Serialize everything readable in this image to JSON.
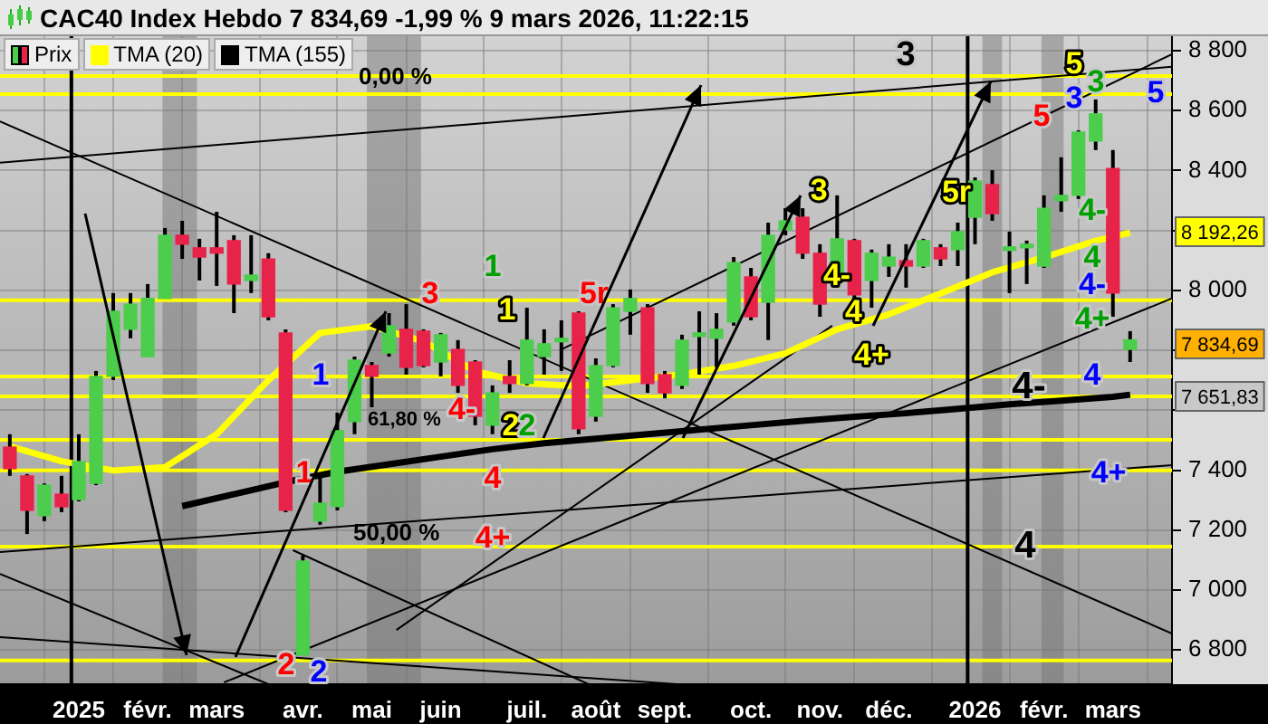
{
  "chart_data": {
    "type": "candlestick",
    "title": "CAC40 Index Hebdo 7 834,69 -1,99 % 9 mars 2026, 11:22:15",
    "xlim": [
      "2024-12-05",
      "2026-03-26"
    ],
    "xticks": [
      {
        "value": "2025-01-06",
        "label": "2025"
      },
      {
        "value": "2025-02-03",
        "label": "févr."
      },
      {
        "value": "2025-03-03",
        "label": "mars"
      },
      {
        "value": "2025-04-07",
        "label": "avr."
      },
      {
        "value": "2025-05-05",
        "label": "mai"
      },
      {
        "value": "2025-06-02",
        "label": "juin"
      },
      {
        "value": "2025-07-07",
        "label": "juil."
      },
      {
        "value": "2025-08-04",
        "label": "août"
      },
      {
        "value": "2025-09-01",
        "label": "sept."
      },
      {
        "value": "2025-10-06",
        "label": "oct."
      },
      {
        "value": "2025-11-03",
        "label": "nov."
      },
      {
        "value": "2025-12-01",
        "label": "déc."
      },
      {
        "value": "2026-01-05",
        "label": "2026"
      },
      {
        "value": "2026-02-02",
        "label": "févr."
      },
      {
        "value": "2026-03-02",
        "label": "mars"
      }
    ],
    "ylim": [
      6686,
      8848
    ],
    "yticks": [
      {
        "value": 6800,
        "label": "6 800"
      },
      {
        "value": 7000,
        "label": "7 000"
      },
      {
        "value": 7200,
        "label": "7 200"
      },
      {
        "value": 7400,
        "label": "7 400"
      },
      {
        "value": 7600,
        "label": null
      },
      {
        "value": 7800,
        "label": null
      },
      {
        "value": 8000,
        "label": "8 000"
      },
      {
        "value": 8200,
        "label": null
      },
      {
        "value": 8400,
        "label": "8 400"
      },
      {
        "value": 8600,
        "label": "8 600"
      },
      {
        "value": 8800,
        "label": "8 800"
      }
    ],
    "grid": true,
    "legend": "top left",
    "series": [
      {
        "name": "Prix",
        "x": [
          "2024-12-09",
          "2024-12-16",
          "2024-12-23",
          "2024-12-30",
          "2025-01-06",
          "2025-01-13",
          "2025-01-20",
          "2025-01-27",
          "2025-02-03",
          "2025-02-10",
          "2025-02-17",
          "2025-02-24",
          "2025-03-03",
          "2025-03-10",
          "2025-03-17",
          "2025-03-24",
          "2025-03-31",
          "2025-04-07",
          "2025-04-14",
          "2025-04-21",
          "2025-04-28",
          "2025-05-05",
          "2025-05-12",
          "2025-05-19",
          "2025-05-26",
          "2025-06-02",
          "2025-06-09",
          "2025-06-16",
          "2025-06-23",
          "2025-06-30",
          "2025-07-07",
          "2025-07-14",
          "2025-07-21",
          "2025-07-28",
          "2025-08-04",
          "2025-08-11",
          "2025-08-18",
          "2025-08-25",
          "2025-09-01",
          "2025-09-08",
          "2025-09-15",
          "2025-09-22",
          "2025-09-29",
          "2025-10-06",
          "2025-10-13",
          "2025-10-20",
          "2025-10-27",
          "2025-11-03",
          "2025-11-10",
          "2025-11-17",
          "2025-11-24",
          "2025-12-01",
          "2025-12-08",
          "2025-12-15",
          "2025-12-22",
          "2025-12-29",
          "2026-01-05",
          "2026-01-12",
          "2026-01-19",
          "2026-01-26",
          "2026-02-02",
          "2026-02-09",
          "2026-02-16",
          "2026-02-23",
          "2026-03-02",
          "2026-03-09"
        ],
        "ohlc": [
          [
            7477,
            7520,
            7381,
            7405
          ],
          [
            7381,
            7387,
            7187,
            7266
          ],
          [
            7248,
            7356,
            7230,
            7350
          ],
          [
            7320,
            7381,
            7260,
            7278
          ],
          [
            7302,
            7520,
            7296,
            7429
          ],
          [
            7356,
            7731,
            7350,
            7713
          ],
          [
            7713,
            7991,
            7701,
            7930
          ],
          [
            7870,
            7991,
            7840,
            7954
          ],
          [
            7779,
            8021,
            7779,
            7973
          ],
          [
            7973,
            8208,
            7973,
            8184
          ],
          [
            8184,
            8232,
            8105,
            8154
          ],
          [
            8142,
            8172,
            8033,
            8111
          ],
          [
            8142,
            8262,
            8015,
            8124
          ],
          [
            8166,
            8184,
            7924,
            8021
          ],
          [
            8033,
            8184,
            7991,
            8051
          ],
          [
            8105,
            8124,
            7900,
            7912
          ],
          [
            7858,
            7870,
            7260,
            7266
          ],
          [
            6783,
            7115,
            6783,
            7097
          ],
          [
            7230,
            7381,
            7218,
            7290
          ],
          [
            7278,
            7592,
            7266,
            7532
          ],
          [
            7562,
            7779,
            7520,
            7767
          ],
          [
            7749,
            7761,
            7610,
            7713
          ],
          [
            7791,
            7924,
            7779,
            7882
          ],
          [
            7870,
            7954,
            7719,
            7743
          ],
          [
            7864,
            7870,
            7743,
            7749
          ],
          [
            7761,
            7858,
            7713,
            7852
          ],
          [
            7803,
            7834,
            7658,
            7683
          ],
          [
            7761,
            7767,
            7550,
            7580
          ],
          [
            7550,
            7683,
            7520,
            7658
          ],
          [
            7713,
            7767,
            7658,
            7689
          ],
          [
            7689,
            7942,
            7683,
            7834
          ],
          [
            7779,
            7870,
            7719,
            7822
          ],
          [
            7828,
            7900,
            7731,
            7834
          ],
          [
            7924,
            7930,
            7520,
            7538
          ],
          [
            7580,
            7773,
            7562,
            7749
          ],
          [
            7749,
            7954,
            7743,
            7942
          ],
          [
            7930,
            8003,
            7852,
            7973
          ],
          [
            7942,
            7954,
            7658,
            7689
          ],
          [
            7719,
            7731,
            7640,
            7658
          ],
          [
            7683,
            7852,
            7671,
            7834
          ],
          [
            7846,
            7930,
            7719,
            7852
          ],
          [
            7840,
            7924,
            7743,
            7870
          ],
          [
            7894,
            8111,
            7882,
            8093
          ],
          [
            8045,
            8075,
            7900,
            7912
          ],
          [
            7960,
            8226,
            7834,
            8184
          ],
          [
            8202,
            8274,
            8184,
            8232
          ],
          [
            8244,
            8274,
            8105,
            8124
          ],
          [
            8124,
            8154,
            7912,
            7954
          ],
          [
            8033,
            8317,
            8021,
            8172
          ],
          [
            8166,
            8172,
            7960,
            7985
          ],
          [
            8033,
            8136,
            7942,
            8124
          ],
          [
            8081,
            8154,
            8045,
            8111
          ],
          [
            8099,
            8154,
            8009,
            8081
          ],
          [
            8081,
            8172,
            8075,
            8166
          ],
          [
            8142,
            8154,
            8081,
            8105
          ],
          [
            8136,
            8226,
            8081,
            8196
          ],
          [
            8244,
            8377,
            8154,
            8365
          ],
          [
            8353,
            8401,
            8232,
            8256
          ],
          [
            8133,
            8196,
            7991,
            8139
          ],
          [
            8142,
            8166,
            8021,
            8154
          ],
          [
            8081,
            8317,
            8075,
            8274
          ],
          [
            8299,
            8444,
            8262,
            8317
          ],
          [
            8317,
            8534,
            8305,
            8528
          ],
          [
            8498,
            8637,
            8468,
            8589
          ],
          [
            8407,
            8468,
            7912,
            7991
          ],
          [
            7803,
            7864,
            7761,
            7834.69
          ]
        ],
        "colors": [
          "#e8234a",
          "#e8234a",
          "#4ccd4c",
          "#e8234a",
          "#4ccd4c",
          "#4ccd4c",
          "#4ccd4c",
          "#4ccd4c",
          "#4ccd4c",
          "#4ccd4c",
          "#e8234a",
          "#e8234a",
          "#e8234a",
          "#e8234a",
          "#4ccd4c",
          "#e8234a",
          "#e8234a",
          "#4ccd4c",
          "#4ccd4c",
          "#4ccd4c",
          "#4ccd4c",
          "#e8234a",
          "#4ccd4c",
          "#e8234a",
          "#e8234a",
          "#4ccd4c",
          "#e8234a",
          "#e8234a",
          "#4ccd4c",
          "#e8234a",
          "#4ccd4c",
          "#4ccd4c",
          "#4ccd4c",
          "#e8234a",
          "#4ccd4c",
          "#4ccd4c",
          "#4ccd4c",
          "#e8234a",
          "#e8234a",
          "#4ccd4c",
          "#4ccd4c",
          "#4ccd4c",
          "#4ccd4c",
          "#e8234a",
          "#4ccd4c",
          "#4ccd4c",
          "#e8234a",
          "#e8234a",
          "#4ccd4c",
          "#e8234a",
          "#4ccd4c",
          "#4ccd4c",
          "#e8234a",
          "#4ccd4c",
          "#e8234a",
          "#4ccd4c",
          "#4ccd4c",
          "#e8234a",
          "#4ccd4c",
          "#4ccd4c",
          "#4ccd4c",
          "#4ccd4c",
          "#4ccd4c",
          "#4ccd4c",
          "#e8234a",
          "#4ccd4c"
        ]
      },
      {
        "name": "TMA (20)",
        "type": "line",
        "color": "#ffff00",
        "x": [
          "2024-12-09",
          "2024-12-30",
          "2025-01-20",
          "2025-02-10",
          "2025-03-03",
          "2025-03-24",
          "2025-04-14",
          "2025-05-05",
          "2025-05-26",
          "2025-06-16",
          "2025-07-07",
          "2025-07-28",
          "2025-08-18",
          "2025-09-08",
          "2025-09-29",
          "2025-10-20",
          "2025-11-10",
          "2025-12-01",
          "2025-12-22",
          "2026-01-12",
          "2026-02-02",
          "2026-02-23",
          "2026-03-09"
        ],
        "values": [
          7480,
          7430,
          7399,
          7410,
          7520,
          7700,
          7858,
          7880,
          7830,
          7730,
          7690,
          7680,
          7700,
          7720,
          7748,
          7790,
          7870,
          7920,
          7990,
          8060,
          8110,
          8165,
          8192.26
        ]
      },
      {
        "name": "TMA (155)",
        "type": "line",
        "color": "#000000",
        "x": [
          "2025-02-17",
          "2025-03-10",
          "2025-03-31",
          "2025-04-21",
          "2025-05-12",
          "2025-06-02",
          "2025-06-23",
          "2025-07-14",
          "2025-08-04",
          "2025-08-25",
          "2025-09-15",
          "2025-10-06",
          "2025-10-27",
          "2025-11-17",
          "2025-12-08",
          "2025-12-29",
          "2026-01-19",
          "2026-02-09",
          "2026-03-02",
          "2026-03-09"
        ],
        "values": [
          7280,
          7320,
          7360,
          7395,
          7420,
          7445,
          7470,
          7490,
          7505,
          7520,
          7535,
          7550,
          7565,
          7578,
          7590,
          7605,
          7620,
          7632,
          7645,
          7651.83
        ]
      },
      {
        "type": "line",
        "color": "#000000",
        "x": [
          "2024-12-05",
          "2026-03-26"
        ],
        "values": [
          8564,
          6855
        ]
      },
      {
        "type": "line",
        "color": "#000000",
        "x": [
          "2024-12-05",
          "2026-03-26"
        ],
        "values": [
          8426,
          8746
        ]
      },
      {
        "type": "line",
        "color": "#000000",
        "x": [
          "2024-12-05",
          "2026-03-26"
        ],
        "values": [
          7127,
          7417
        ]
      },
      {
        "type": "line",
        "color": "#000000",
        "x": [
          "2024-12-05",
          "2025-09-06"
        ],
        "values": [
          6843,
          6686
        ]
      },
      {
        "type": "line",
        "color": "#000000",
        "x": [
          "2025-03-06",
          "2026-03-26"
        ],
        "values": [
          6692,
          7973
        ]
      },
      {
        "type": "line",
        "color": "#000000",
        "x": [
          "2025-05-15",
          "2025-11-08"
        ],
        "values": [
          6867,
          7882
        ]
      },
      {
        "type": "line",
        "color": "#000000",
        "x": [
          "2025-07-21",
          "2026-03-26"
        ],
        "values": [
          7803,
          8788
        ]
      },
      {
        "type": "line",
        "color": "#000000",
        "x": [
          "2025-04-03",
          "2025-08-01"
        ],
        "values": [
          7133,
          6686
        ]
      },
      {
        "type": "line",
        "color": "#000000",
        "x": [
          "2024-12-05",
          "2025-03-24"
        ],
        "values": [
          7054,
          6686
        ]
      }
    ],
    "ref_lines": [
      {
        "axis": "y",
        "value": 8715,
        "color": "#ffff00"
      },
      {
        "axis": "y",
        "value": 8655,
        "color": "#ffff00"
      },
      {
        "axis": "y",
        "value": 7967,
        "color": "#ffff00"
      },
      {
        "axis": "y",
        "value": 7713,
        "color": "#ffff00"
      },
      {
        "axis": "y",
        "value": 7646,
        "color": "#ffff00"
      },
      {
        "axis": "y",
        "value": 7501,
        "color": "#ffff00"
      },
      {
        "axis": "y",
        "value": 7399,
        "color": "#ffff00"
      },
      {
        "axis": "y",
        "value": 7145,
        "color": "#ffff00"
      },
      {
        "axis": "y",
        "value": 6765,
        "color": "#ffff00"
      },
      {
        "axis": "x",
        "value": "2025-01-03",
        "color": "#000000"
      },
      {
        "axis": "x",
        "value": "2026-01-02",
        "color": "#000000"
      }
    ],
    "bands": [
      {
        "axis": "x",
        "from": "2025-02-09",
        "to": "2025-02-23",
        "color": "#707070"
      },
      {
        "axis": "x",
        "from": "2025-05-03",
        "to": "2025-05-25",
        "color": "#707070"
      },
      {
        "axis": "x",
        "from": "2026-01-08",
        "to": "2026-01-16",
        "color": "#707070"
      },
      {
        "axis": "x",
        "from": "2026-02-01",
        "to": "2026-02-10",
        "color": "#707070"
      }
    ],
    "annotations": [
      "0,00 %",
      "61,80 %",
      "50,00 %",
      {
        "text": "3",
        "x": "2025-05-14",
        "y": 7930
      },
      "1",
      "1",
      "2",
      "2",
      "4-",
      "1",
      "1",
      "2",
      "2",
      "4",
      "4+",
      "5r",
      {
        "text": "3",
        "x": "2025-10-27",
        "y": 8274
      },
      "4-",
      {
        "text": "4",
        "x": "2025-11-24",
        "y": 7882
      },
      {
        "text": "4+",
        "x": "2025-11-24",
        "y": 7882
      },
      "5r",
      "3",
      "5",
      "5",
      "3",
      "3",
      "5",
      "4-",
      "4",
      "4-",
      "4+",
      "4",
      "4+",
      "4-",
      "4",
      "8 192,26",
      "7 834,69",
      "7 651,83"
    ]
  }
}
